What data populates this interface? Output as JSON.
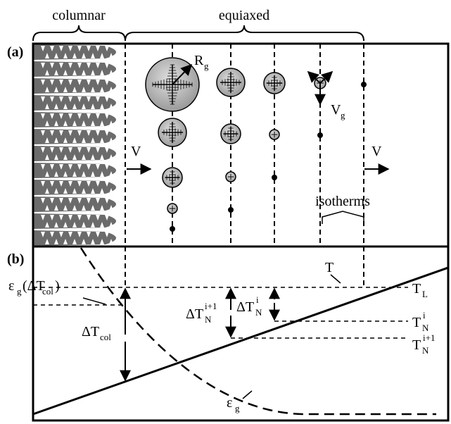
{
  "header": {
    "columnar": "columnar",
    "equiaxed": "equiaxed"
  },
  "panel_a": {
    "tag": "(a)",
    "grain_radius": [
      "R",
      "g"
    ],
    "grain_velocity": [
      "V",
      "g"
    ],
    "velocity_left": "V",
    "velocity_right": "V",
    "isotherms": "isotherms"
  },
  "panel_b": {
    "tag": "(b)",
    "temperature": "T",
    "liquidus": [
      "T",
      "L"
    ],
    "nucleation_i": [
      "T",
      "N",
      "i"
    ],
    "nucleation_i1": [
      "T",
      "N",
      "i+1"
    ],
    "undercooling_col": [
      "ΔT",
      "col"
    ],
    "undercooling_i1": [
      "ΔT",
      "N",
      "i+1"
    ],
    "undercooling_i": [
      "ΔT",
      "N",
      "i"
    ],
    "fraction_at_col": [
      "ε",
      "g",
      "(ΔT",
      "col",
      ")"
    ],
    "fraction": [
      "ε",
      "g"
    ]
  }
}
